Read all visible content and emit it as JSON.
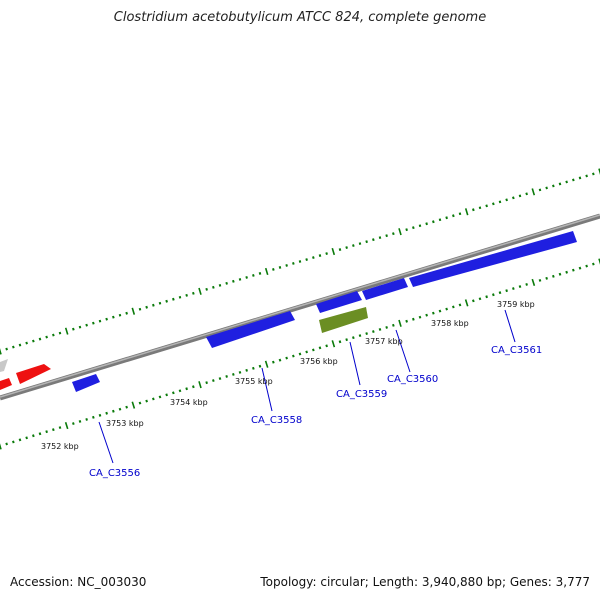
{
  "title": "Clostridium acetobutylicum ATCC 824, complete genome",
  "accession": "Accession: NC_003030",
  "topology": "Topology: circular; Length: 3,940,880 bp; Genes: 3,777",
  "colors": {
    "backbone": "#8a8a8a",
    "ticks": "#0a7a0a",
    "gene_blue": "#1f1fe0",
    "gene_red": "#ee1111",
    "gene_green": "#6b8e23",
    "gene_gray": "#c8c8c8",
    "label": "#0000cc"
  },
  "kbp_labels": [
    "3752 kbp",
    "3753 kbp",
    "3754 kbp",
    "3755 kbp",
    "3756 kbp",
    "3757 kbp",
    "3758 kbp",
    "3759 kbp"
  ],
  "gene_labels": [
    "CA_C3556",
    "CA_C3558",
    "CA_C3559",
    "CA_C3560",
    "CA_C3561"
  ]
}
